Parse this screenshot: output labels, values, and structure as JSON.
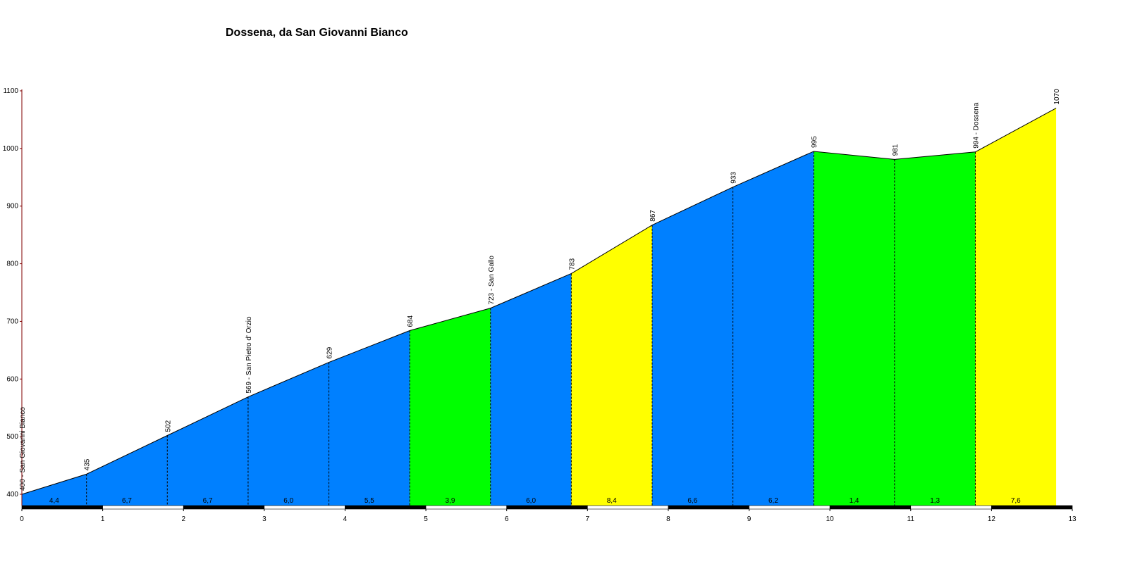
{
  "chart_data": {
    "type": "area",
    "title": "Dossena, da San Giovanni Bianco",
    "xlabel": "",
    "ylabel": "",
    "xlim": [
      0,
      13
    ],
    "ylim": [
      400,
      1100
    ],
    "x_ticks": [
      "0",
      "1",
      "2",
      "3",
      "4",
      "5",
      "6",
      "7",
      "8",
      "9",
      "10",
      "11",
      "12",
      "13"
    ],
    "y_ticks": [
      "400",
      "500",
      "600",
      "700",
      "800",
      "900",
      "1000",
      "1100"
    ],
    "x_tick_values": [
      0,
      1,
      2,
      3,
      4,
      5,
      6,
      7,
      8,
      9,
      10,
      11,
      12,
      13
    ],
    "y_tick_values": [
      400,
      500,
      600,
      700,
      800,
      900,
      1000,
      1100
    ],
    "points": [
      {
        "x": 0,
        "y": 400,
        "label": "400 - San Giovanni Bianco"
      },
      {
        "x": 0.8,
        "y": 435,
        "label": "435"
      },
      {
        "x": 1.8,
        "y": 502,
        "label": "502"
      },
      {
        "x": 2.8,
        "y": 569,
        "label": "569 - San Pietro d' Orzio"
      },
      {
        "x": 3.8,
        "y": 629,
        "label": "629"
      },
      {
        "x": 4.8,
        "y": 684,
        "label": "684"
      },
      {
        "x": 5.8,
        "y": 723,
        "label": "723 - San Gallo"
      },
      {
        "x": 6.8,
        "y": 783,
        "label": "783"
      },
      {
        "x": 7.8,
        "y": 867,
        "label": "867"
      },
      {
        "x": 8.8,
        "y": 933,
        "label": "933"
      },
      {
        "x": 9.8,
        "y": 995,
        "label": "995"
      },
      {
        "x": 10.8,
        "y": 981,
        "label": "981"
      },
      {
        "x": 11.8,
        "y": 994,
        "label": "994 - Dossena"
      },
      {
        "x": 12.8,
        "y": 1070,
        "label": "1070"
      }
    ],
    "segments": [
      {
        "gradient": "4,4",
        "color": "#0080ff"
      },
      {
        "gradient": "6,7",
        "color": "#0080ff"
      },
      {
        "gradient": "6,7",
        "color": "#0080ff"
      },
      {
        "gradient": "6,0",
        "color": "#0080ff"
      },
      {
        "gradient": "5,5",
        "color": "#0080ff"
      },
      {
        "gradient": "3,9",
        "color": "#00ff00"
      },
      {
        "gradient": "6,0",
        "color": "#0080ff"
      },
      {
        "gradient": "8,4",
        "color": "#ffff00"
      },
      {
        "gradient": "6,6",
        "color": "#0080ff"
      },
      {
        "gradient": "6,2",
        "color": "#0080ff"
      },
      {
        "gradient": "1,4",
        "color": "#00ff00"
      },
      {
        "gradient": "1,3",
        "color": "#00ff00"
      },
      {
        "gradient": "7,6",
        "color": "#ffff00"
      }
    ],
    "grid": false,
    "axis_color": "#800000"
  }
}
